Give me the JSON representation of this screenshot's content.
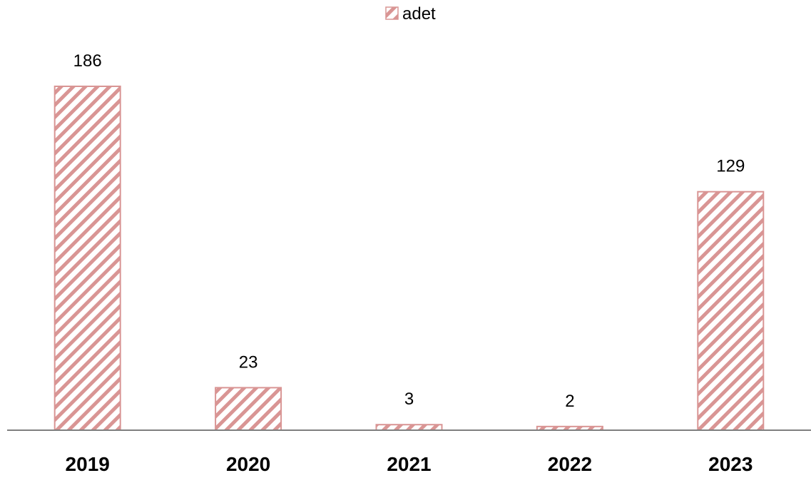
{
  "chart_data": {
    "type": "bar",
    "categories": [
      "2019",
      "2020",
      "2021",
      "2022",
      "2023"
    ],
    "series": [
      {
        "name": "adet",
        "values": [
          186,
          23,
          3,
          2,
          129
        ]
      }
    ],
    "data_labels": [
      "186",
      "23",
      "3",
      "2",
      "129"
    ],
    "ylim": [
      0,
      186
    ],
    "legend_position": "top",
    "grid": false,
    "colors": {
      "bar_stroke": "#d99594",
      "hatch": "#d99594",
      "axis": "#7f7f7f"
    }
  }
}
